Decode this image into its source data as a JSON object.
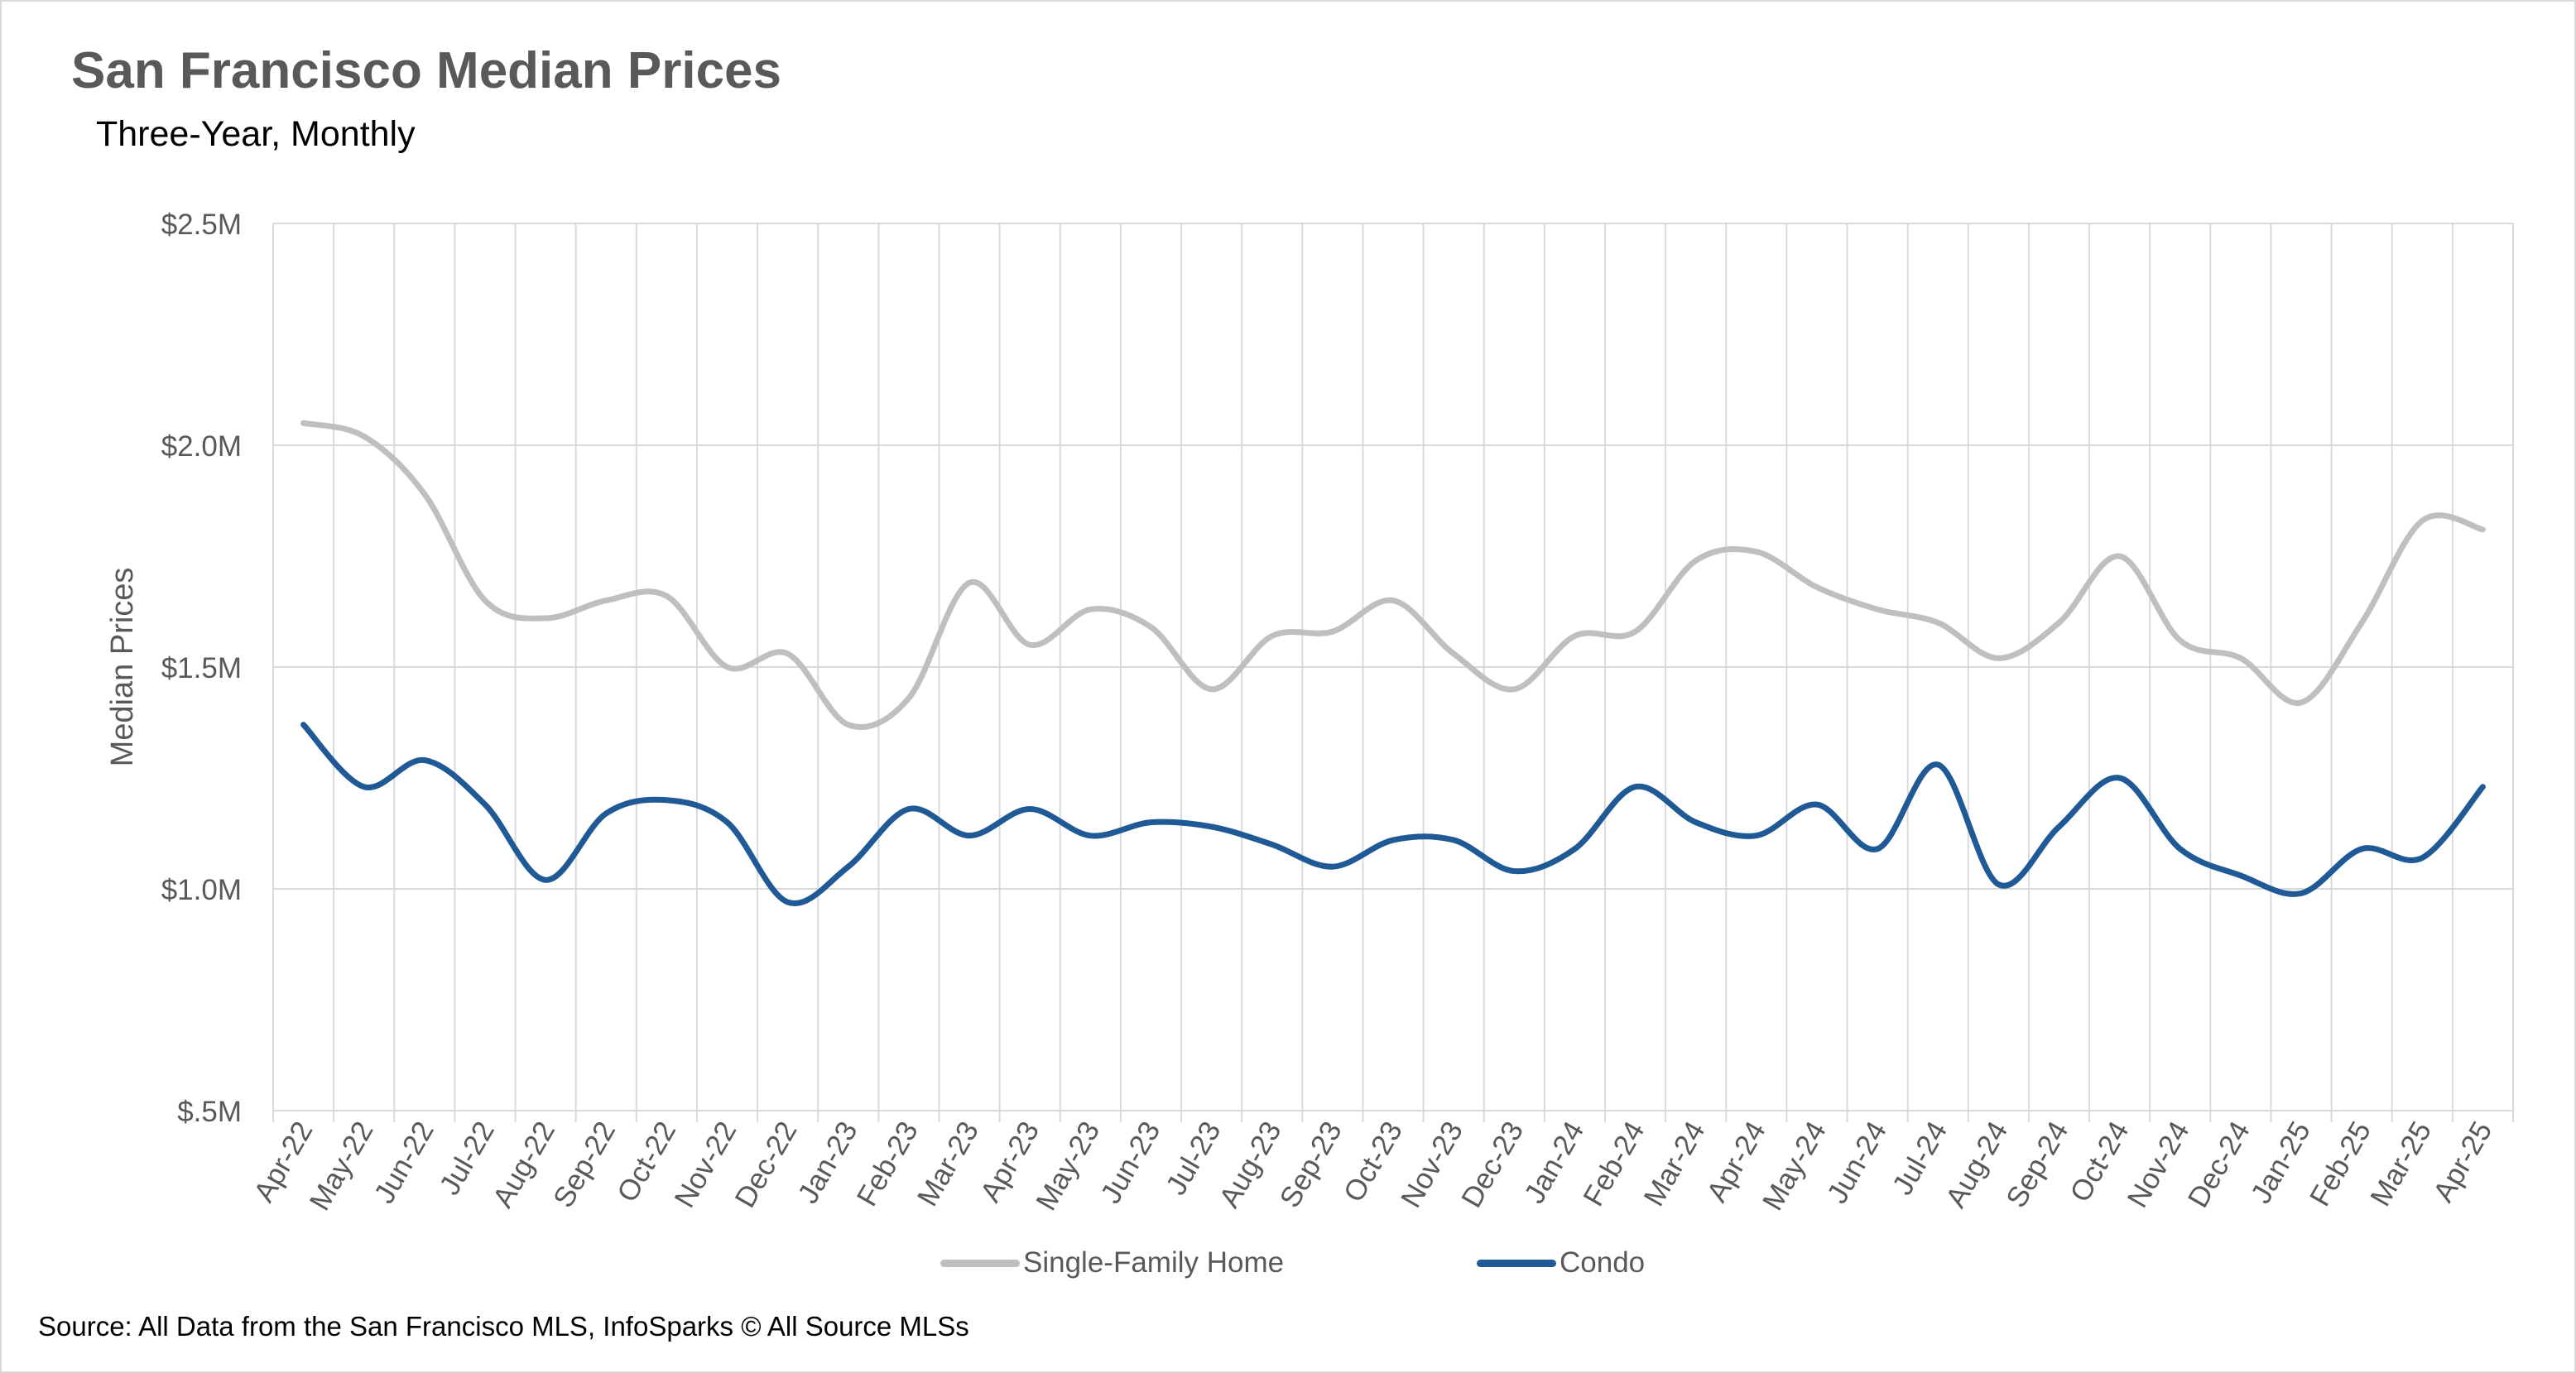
{
  "title": "San Francisco Median Prices",
  "subtitle": "Three-Year,  Monthly",
  "source": "Source: All Data from the San Francisco MLS, InfoSparks © All Source MLSs",
  "chart_data": {
    "type": "line",
    "title": "San Francisco Median Prices",
    "subtitle": "Three-Year,  Monthly",
    "xlabel": "",
    "ylabel": "Median Prices",
    "ylim": [
      0.5,
      2.5
    ],
    "y_unit": "$M",
    "y_ticks": [
      0.5,
      1.0,
      1.5,
      2.0,
      2.5
    ],
    "y_tick_labels": [
      "$.5M",
      "$1.0M",
      "$1.5M",
      "$2.0M",
      "$2.5M"
    ],
    "grid": true,
    "smooth": true,
    "legend": "bottom",
    "categories": [
      "Apr-22",
      "May-22",
      "Jun-22",
      "Jul-22",
      "Aug-22",
      "Sep-22",
      "Oct-22",
      "Nov-22",
      "Dec-22",
      "Jan-23",
      "Feb-23",
      "Mar-23",
      "Apr-23",
      "May-23",
      "Jun-23",
      "Jul-23",
      "Aug-23",
      "Sep-23",
      "Oct-23",
      "Nov-23",
      "Dec-23",
      "Jan-24",
      "Feb-24",
      "Mar-24",
      "Apr-24",
      "May-24",
      "Jun-24",
      "Jul-24",
      "Aug-24",
      "Sep-24",
      "Oct-24",
      "Nov-24",
      "Dec-24",
      "Jan-25",
      "Feb-25",
      "Mar-25",
      "Apr-25"
    ],
    "series": [
      {
        "name": "Single-Family Home",
        "color": "#bfbfbf",
        "values": [
          2.05,
          2.02,
          1.89,
          1.65,
          1.61,
          1.65,
          1.66,
          1.5,
          1.53,
          1.37,
          1.43,
          1.69,
          1.55,
          1.63,
          1.59,
          1.45,
          1.57,
          1.58,
          1.65,
          1.53,
          1.45,
          1.57,
          1.58,
          1.74,
          1.76,
          1.68,
          1.63,
          1.6,
          1.52,
          1.6,
          1.75,
          1.56,
          1.52,
          1.42,
          1.6,
          1.83,
          1.81
        ]
      },
      {
        "name": "Condo",
        "color": "#1f5a96",
        "values": [
          1.37,
          1.23,
          1.29,
          1.19,
          1.02,
          1.17,
          1.2,
          1.15,
          0.97,
          1.05,
          1.18,
          1.12,
          1.18,
          1.12,
          1.15,
          1.14,
          1.1,
          1.05,
          1.11,
          1.11,
          1.04,
          1.09,
          1.23,
          1.15,
          1.12,
          1.19,
          1.09,
          1.28,
          1.01,
          1.14,
          1.25,
          1.09,
          1.03,
          0.99,
          1.09,
          1.07,
          1.23
        ]
      }
    ]
  }
}
